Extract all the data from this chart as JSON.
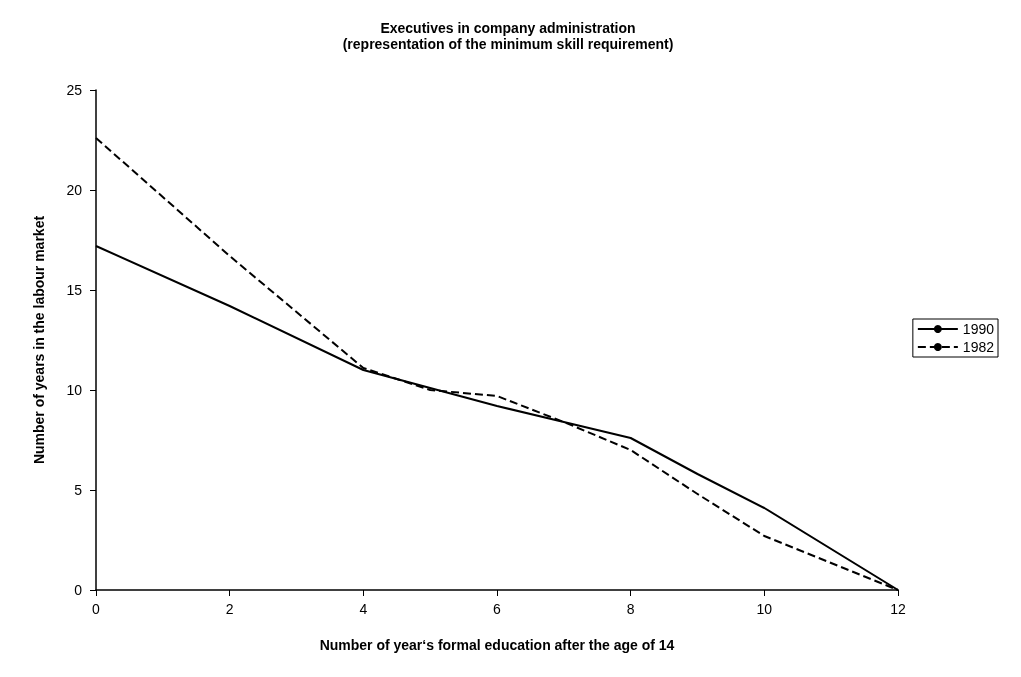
{
  "chart_data": {
    "type": "line",
    "title": "Executives in company administration",
    "subtitle": "(representation of the minimum skill requirement)",
    "xlabel": "Number of year‘s formal education after the age of 14",
    "ylabel": "Number of years in the labour market",
    "xlim": [
      0,
      12
    ],
    "xticks": [
      0,
      2,
      4,
      6,
      8,
      10,
      12
    ],
    "ylim": [
      0,
      25
    ],
    "yticks": [
      0,
      5,
      10,
      15,
      20,
      25
    ],
    "grid": false,
    "legend": "right",
    "marker": "none",
    "series": [
      {
        "name": "1990",
        "color": "#000000",
        "line_style": "solid",
        "x": [
          0,
          2,
          4,
          6,
          7,
          8,
          9,
          10,
          12
        ],
        "values": [
          17.2,
          14.2,
          11,
          9.2,
          8.4,
          7.6,
          5.8,
          4.1,
          0
        ]
      },
      {
        "name": "1982",
        "color": "#000000",
        "line_style": "dashed",
        "x": [
          0,
          2,
          4,
          5,
          6,
          7,
          8,
          9,
          10,
          12
        ],
        "values": [
          22.6,
          16.7,
          11.1,
          10,
          9.7,
          8.4,
          7,
          4.8,
          2.7,
          0
        ]
      }
    ]
  }
}
